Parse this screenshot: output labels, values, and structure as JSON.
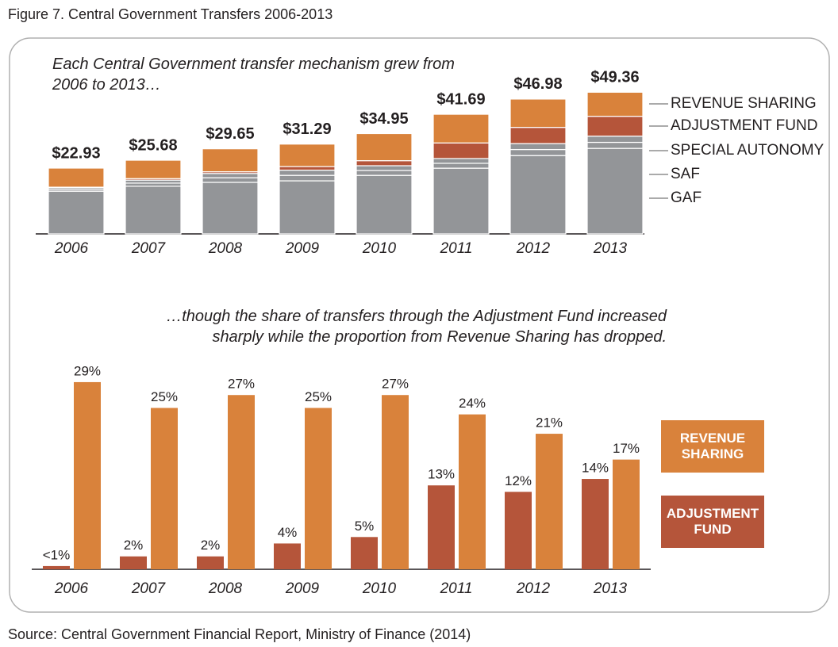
{
  "title": "Figure 7. Central Government Transfers 2006-2013",
  "source": "Source: Central Government Financial Report, Ministry of Finance (2014)",
  "chart_data": [
    {
      "type": "stacked_bar",
      "subtitle": "Each Central Government transfer mechanism grew from 2006 to 2013…",
      "categories": [
        "2006",
        "2007",
        "2008",
        "2009",
        "2010",
        "2011",
        "2012",
        "2013"
      ],
      "series": [
        {
          "name": "GAF",
          "color": "#939598",
          "values": [
            14.88,
            16.6,
            17.96,
            18.5,
            20.4,
            22.9,
            27.3,
            29.8
          ]
        },
        {
          "name": "SAF",
          "color": "#939598",
          "values": [
            0.6,
            1.1,
            1.6,
            1.9,
            1.7,
            1.7,
            2.1,
            2.1
          ]
        },
        {
          "name": "SPECIAL AUTONOMY",
          "color": "#939598",
          "values": [
            0.6,
            1.05,
            1.5,
            1.82,
            1.66,
            1.67,
            2.07,
            2.16
          ]
        },
        {
          "name": "ADJUSTMENT FUND",
          "color": "#b5553a",
          "values": [
            0.2,
            0.51,
            0.59,
            1.25,
            1.75,
            5.42,
            5.64,
            6.91
          ]
        },
        {
          "name": "REVENUE SHARING",
          "color": "#d9823b",
          "values": [
            6.65,
            6.42,
            8.0,
            7.82,
            9.44,
            10.0,
            9.87,
            8.39
          ]
        }
      ],
      "totals": [
        22.93,
        25.68,
        29.65,
        31.29,
        34.95,
        41.69,
        46.98,
        49.36
      ],
      "total_labels": [
        "$22.93",
        "$25.68",
        "$29.65",
        "$31.29",
        "$34.95",
        "$41.69",
        "$46.98",
        "$49.36"
      ]
    },
    {
      "type": "grouped_bar",
      "subtitle": "…though the share of transfers through the Adjustment Fund increased sharply while the proportion from Revenue Sharing has dropped.",
      "categories": [
        "2006",
        "2007",
        "2008",
        "2009",
        "2010",
        "2011",
        "2012",
        "2013"
      ],
      "series": [
        {
          "name": "ADJUSTMENT FUND",
          "color": "#b5553a",
          "values": [
            0.5,
            2,
            2,
            4,
            5,
            13,
            12,
            14
          ],
          "value_labels": [
            "<1%",
            "2%",
            "2%",
            "4%",
            "5%",
            "13%",
            "12%",
            "14%"
          ]
        },
        {
          "name": "REVENUE SHARING",
          "color": "#d9823b",
          "values": [
            29,
            25,
            27,
            25,
            27,
            24,
            21,
            17
          ],
          "value_labels": [
            "29%",
            "25%",
            "27%",
            "25%",
            "27%",
            "24%",
            "21%",
            "17%"
          ]
        }
      ]
    }
  ]
}
